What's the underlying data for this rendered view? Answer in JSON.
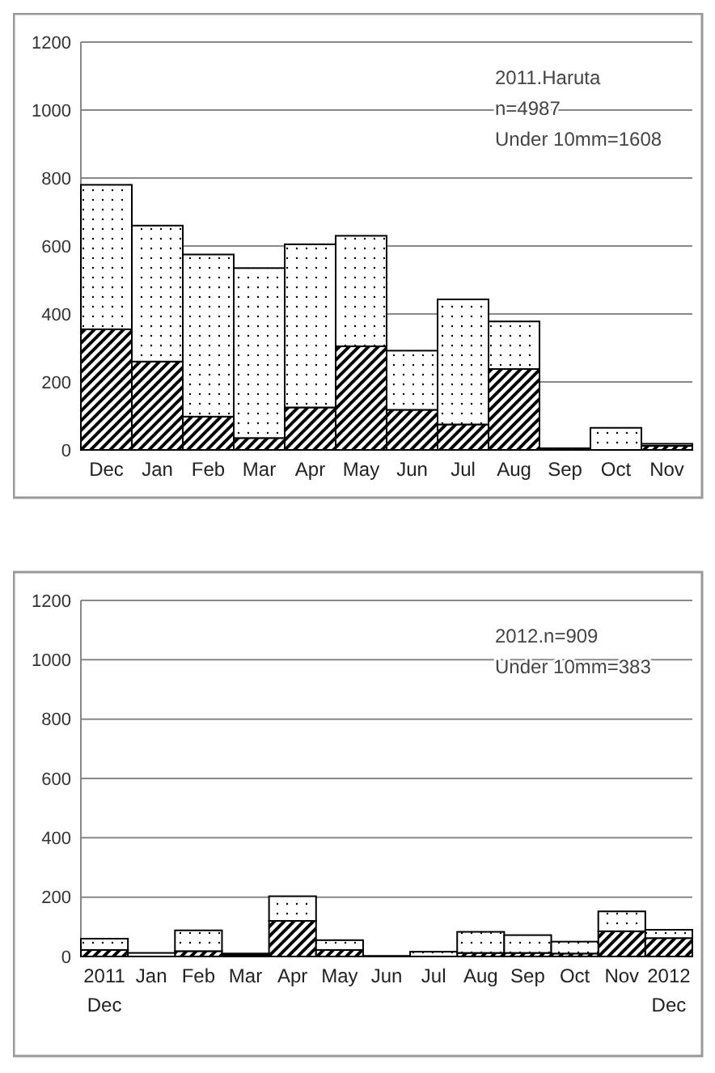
{
  "chart_data": [
    {
      "type": "bar",
      "stacked": true,
      "categories": [
        "Dec",
        "Jan",
        "Feb",
        "Mar",
        "Apr",
        "May",
        "Jun",
        "Jul",
        "Aug",
        "Sep",
        "Oct",
        "Nov"
      ],
      "series": [
        {
          "color": "#000000",
          "values": [
            355,
            260,
            98,
            35,
            125,
            305,
            118,
            75,
            238,
            5,
            0,
            12
          ]
        },
        {
          "color": "#000000",
          "values": [
            425,
            400,
            477,
            500,
            480,
            325,
            174,
            368,
            140,
            0,
            65,
            6
          ]
        }
      ],
      "ylim": [
        0,
        1200
      ],
      "yticks": [
        0,
        200,
        400,
        600,
        800,
        1000,
        1200
      ],
      "grid": "y",
      "annotations": [
        "2011.Haruta",
        "n=4987",
        "Under 10mm=1608"
      ]
    },
    {
      "type": "bar",
      "stacked": true,
      "categories": [
        "2011\nDec",
        "Jan",
        "Feb",
        "Mar",
        "Apr",
        "May",
        "Jun",
        "Jul",
        "Aug",
        "Sep",
        "Oct",
        "Nov",
        "2012\nDec"
      ],
      "series": [
        {
          "color": "#000000",
          "values": [
            22,
            null,
            18,
            5,
            120,
            22,
            0,
            null,
            12,
            12,
            10,
            85,
            62
          ]
        },
        {
          "color": "#000000",
          "values": [
            38,
            12,
            70,
            5,
            83,
            33,
            2,
            16,
            71,
            60,
            40,
            67,
            28
          ]
        }
      ],
      "ylim": [
        0,
        1200
      ],
      "yticks": [
        0,
        200,
        400,
        600,
        800,
        1000,
        1200
      ],
      "grid": "y",
      "annotations": [
        "2012.n=909",
        "Under 10mm=383"
      ]
    }
  ]
}
